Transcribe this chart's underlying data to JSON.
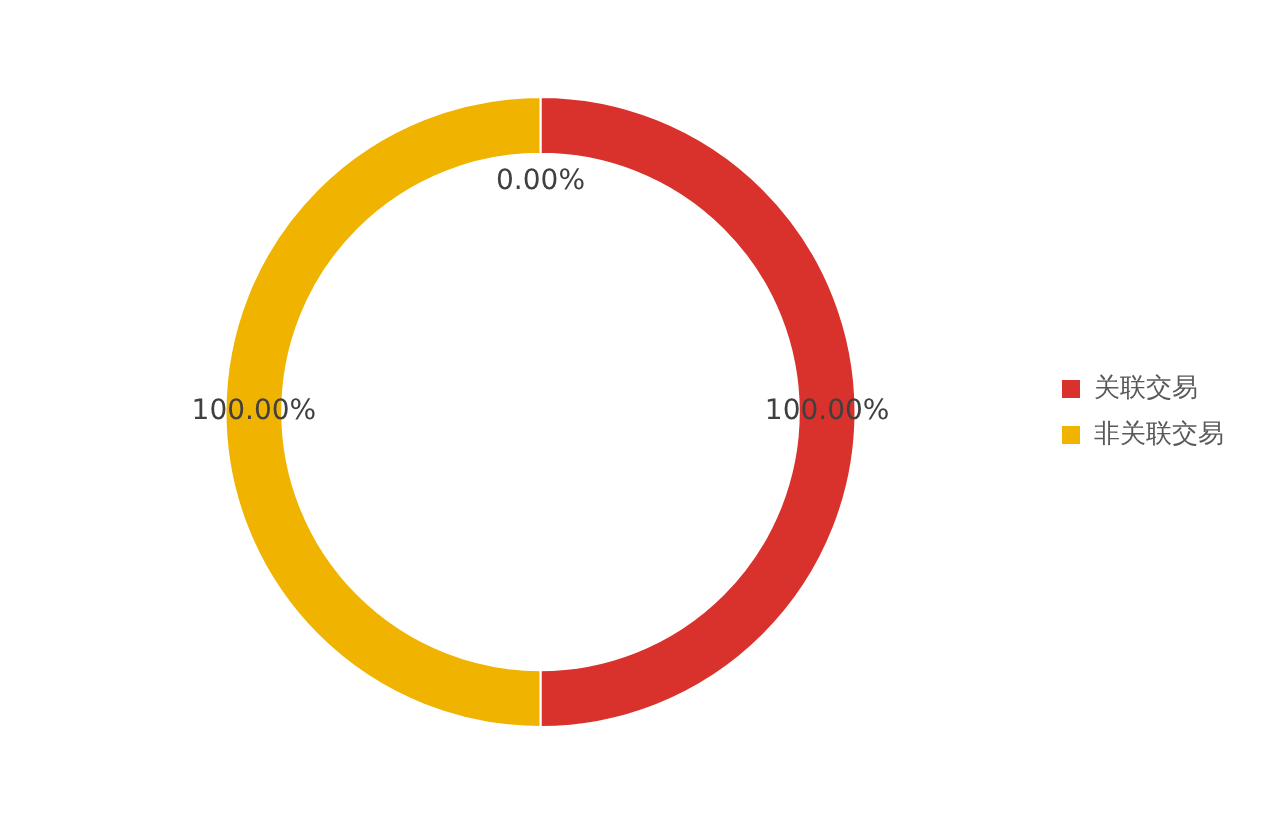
{
  "chart_data": {
    "type": "donut",
    "categories": [
      "关联交易",
      "非关联交易"
    ],
    "values": [
      100,
      100
    ],
    "colors": [
      "#d9312c",
      "#f0b400"
    ],
    "value_labels": [
      "100.00%",
      "100.00%"
    ],
    "annotations": [
      "0.00%"
    ],
    "legend": "right"
  }
}
